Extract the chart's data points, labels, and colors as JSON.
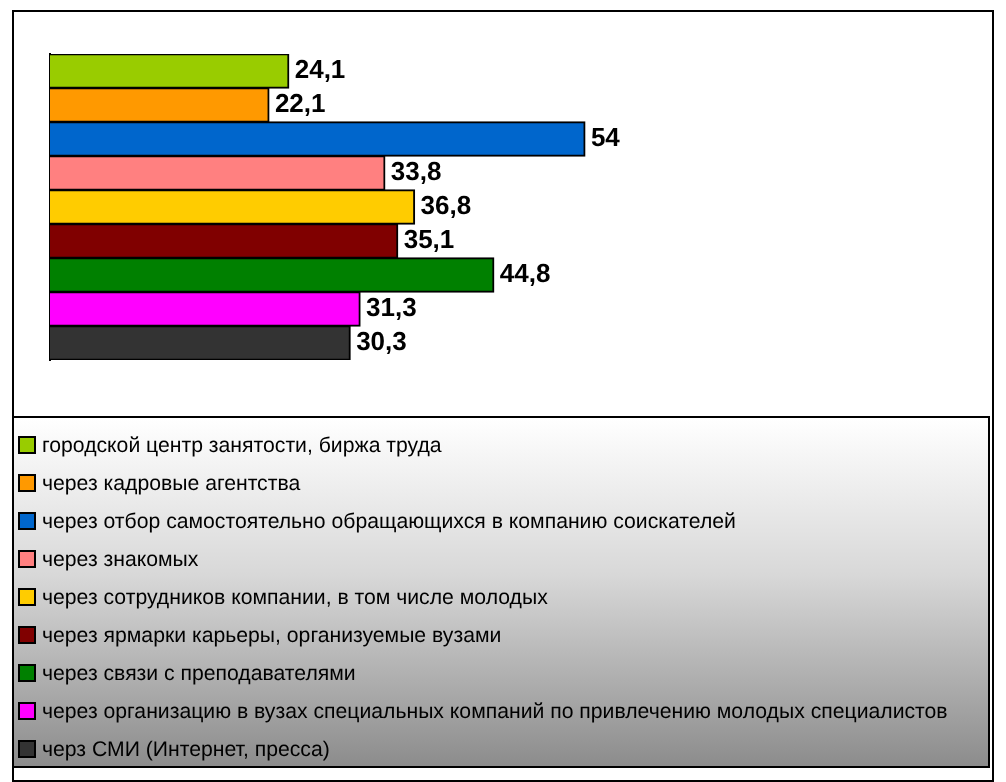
{
  "chart_data": {
    "type": "bar",
    "orientation": "horizontal",
    "categories": [
      null
    ],
    "series": [
      {
        "name": "городской центр занятости, биржа труда",
        "color": "#99cc00",
        "values": [
          24.1
        ],
        "value_labels": [
          "24,1"
        ]
      },
      {
        "name": "через кадровые агентства",
        "color": "#ff9900",
        "values": [
          22.1
        ],
        "value_labels": [
          "22,1"
        ]
      },
      {
        "name": "через отбор самостоятельно обращающихся в компанию соискателей",
        "color": "#0066cc",
        "values": [
          54
        ],
        "value_labels": [
          "54"
        ]
      },
      {
        "name": "через знакомых",
        "color": "#ff8080",
        "values": [
          33.8
        ],
        "value_labels": [
          "33,8"
        ]
      },
      {
        "name": "через сотрудников компании, в том числе молодых",
        "color": "#ffcc00",
        "values": [
          36.8
        ],
        "value_labels": [
          "36,8"
        ]
      },
      {
        "name": "через ярмарки карьеры, организуемые вузами",
        "color": "#800000",
        "values": [
          35.1
        ],
        "value_labels": [
          "35,1"
        ]
      },
      {
        "name": "через связи с преподавателями",
        "color": "#008000",
        "values": [
          44.8
        ],
        "value_labels": [
          "44,8"
        ]
      },
      {
        "name": "через организацию в вузах специальных компаний по привлечению молодых специалистов",
        "color": "#ff00ff",
        "values": [
          31.3
        ],
        "value_labels": [
          "31,3"
        ]
      },
      {
        "name": "черз СМИ (Интернет, пресса)",
        "color": "#333333",
        "values": [
          30.3
        ],
        "value_labels": [
          "30,3"
        ]
      }
    ],
    "legend": "bottom",
    "grid": false,
    "tick_labels": false
  }
}
